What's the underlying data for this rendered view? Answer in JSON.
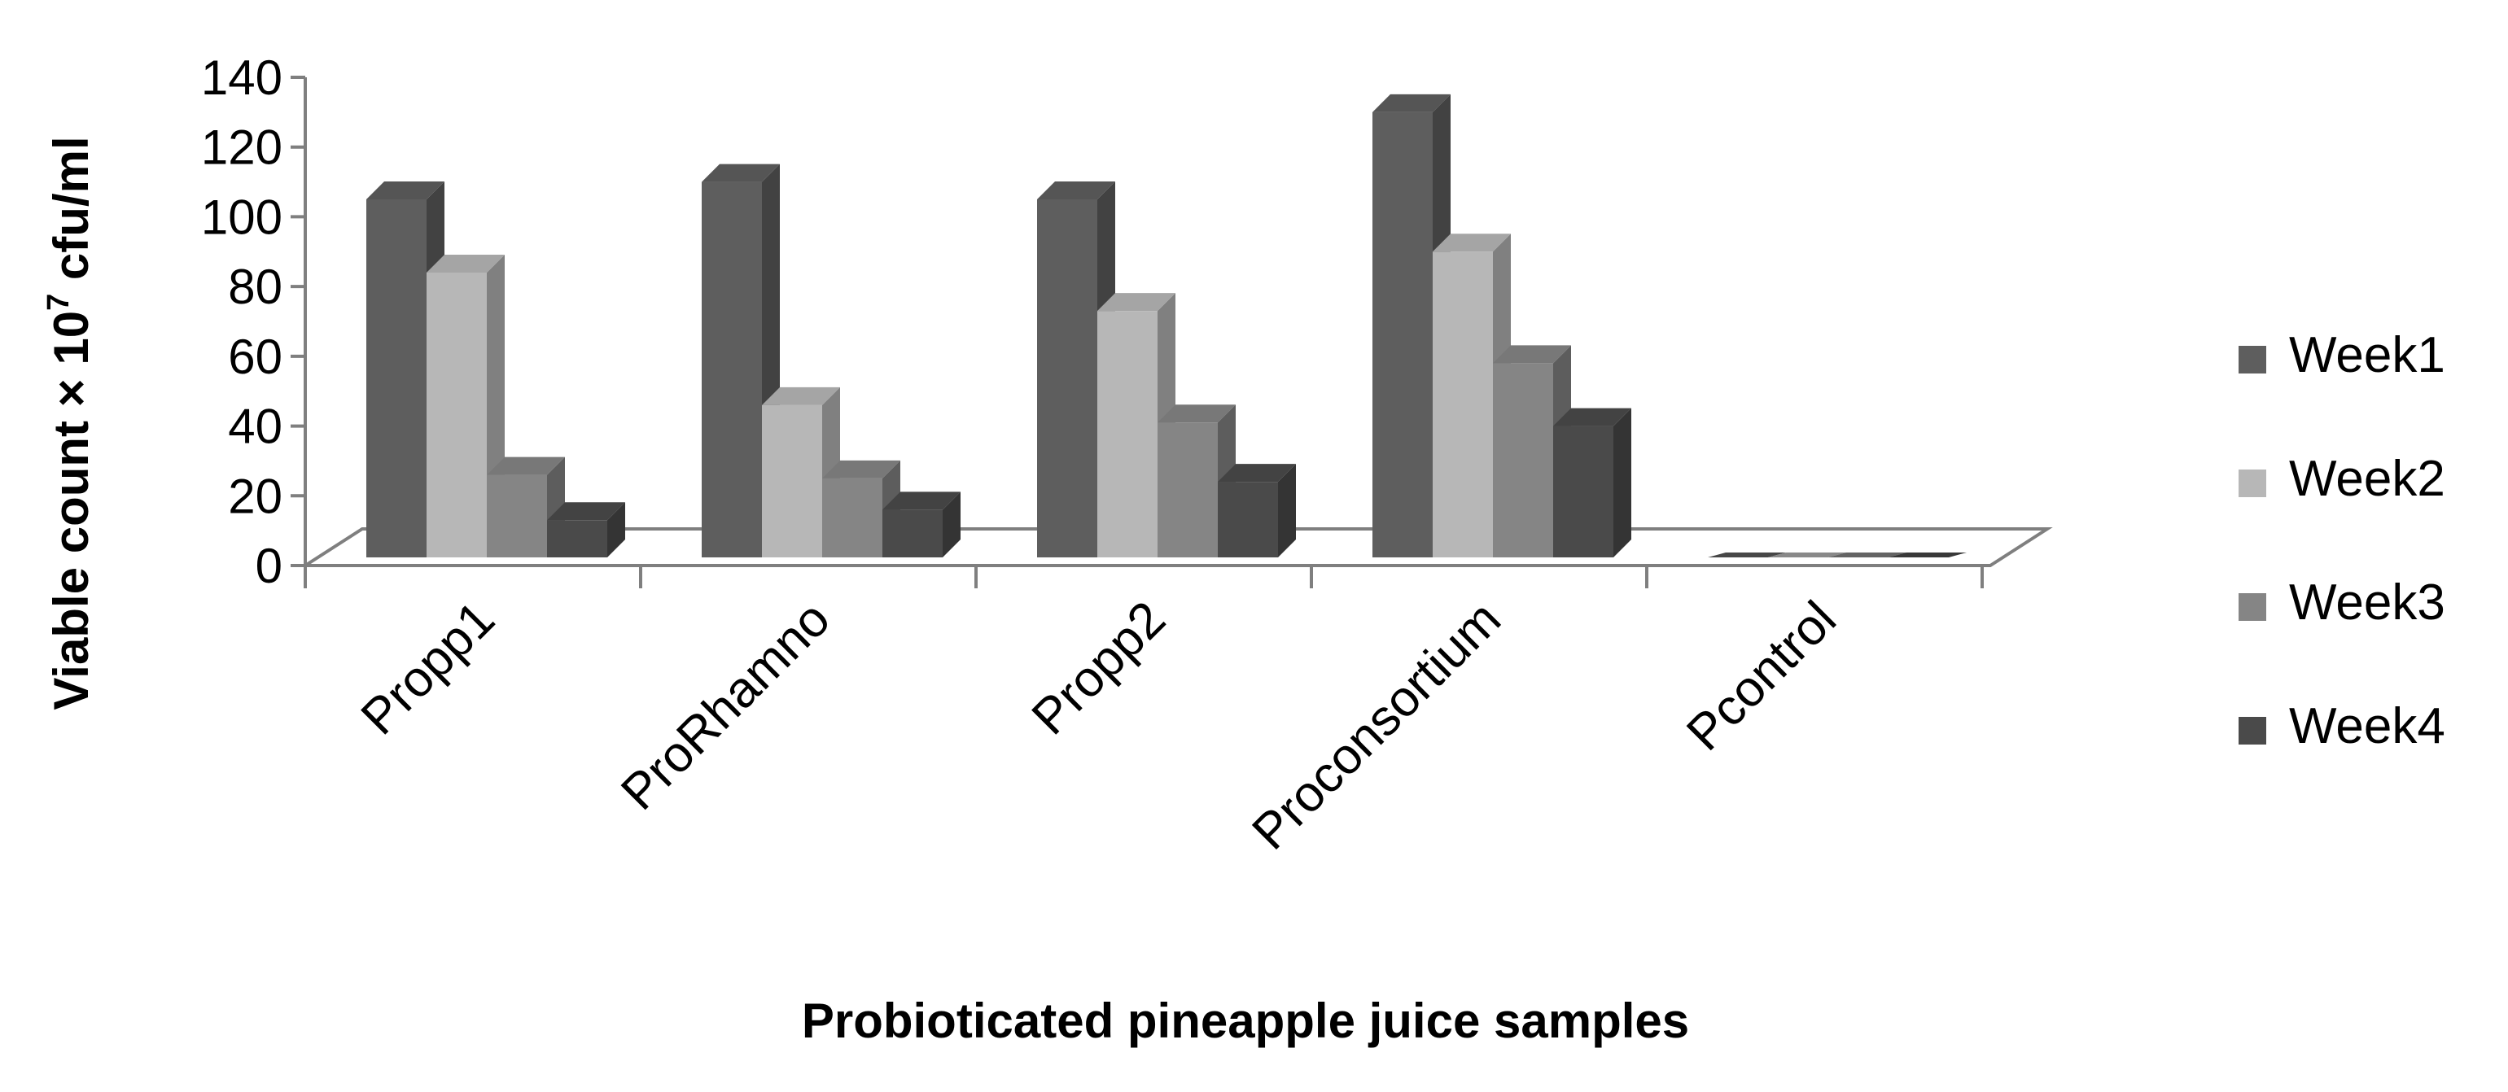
{
  "chart_data": {
    "type": "bar",
    "categories": [
      "Propp1",
      "ProRhamno",
      "Propp2",
      "Proconsortium",
      "Pcontrol"
    ],
    "series": [
      {
        "name": "Week1",
        "values": [
          105,
          110,
          105,
          130,
          0
        ]
      },
      {
        "name": "Week2",
        "values": [
          84,
          46,
          73,
          90,
          0
        ]
      },
      {
        "name": "Week3",
        "values": [
          26,
          25,
          41,
          58,
          0
        ]
      },
      {
        "name": "Week4",
        "values": [
          13,
          16,
          24,
          40,
          0
        ]
      }
    ],
    "xlabel": "Probioticated pineapple juice samples",
    "ylabel": {
      "prefix": "Viable count × 10",
      "superscript": "7",
      "suffix": " cfu/ml"
    },
    "ylim": [
      0,
      140
    ],
    "yticks": [
      0,
      20,
      40,
      60,
      80,
      100,
      120,
      140
    ],
    "legend_position": "right",
    "grid": false,
    "style": "3d-clustered-column",
    "colors": {
      "Week1": "#5e5e5e",
      "Week2": "#b7b7b7",
      "Week3": "#858585",
      "Week4": "#4a4a4a"
    }
  }
}
